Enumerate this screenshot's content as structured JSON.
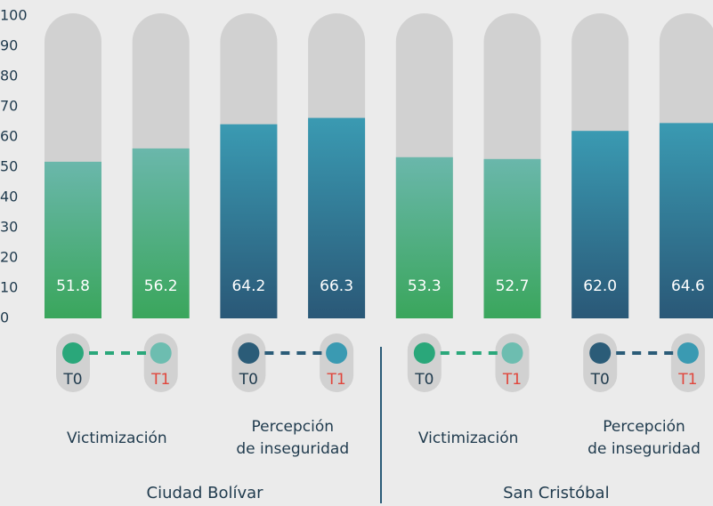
{
  "chart_data": {
    "type": "bar",
    "values": [
      51.8,
      56.2,
      64.2,
      66.3,
      53.3,
      52.7,
      62.0,
      64.6
    ],
    "value_labels": [
      "51.8",
      "56.2",
      "64.2",
      "66.3",
      "53.3",
      "52.7",
      "62.0",
      "64.6"
    ],
    "ylim": [
      0,
      100
    ],
    "yticks": [
      0,
      10,
      20,
      30,
      40,
      50,
      60,
      70,
      80,
      90,
      100
    ],
    "track_color": "#d1d1d1",
    "bar_colors": [
      {
        "top": "#6ab7ab",
        "bottom": "#3aa65c"
      },
      {
        "top": "#6ab7ab",
        "bottom": "#3aa65c"
      },
      {
        "top": "#3a9ab2",
        "bottom": "#2a5877"
      },
      {
        "top": "#3a9ab2",
        "bottom": "#2a5877"
      },
      {
        "top": "#6ab7ab",
        "bottom": "#3aa65c"
      },
      {
        "top": "#6ab7ab",
        "bottom": "#3aa65c"
      },
      {
        "top": "#3a9ab2",
        "bottom": "#2a5877"
      },
      {
        "top": "#3a9ab2",
        "bottom": "#2a5877"
      }
    ],
    "periods": [
      "T0",
      "T1",
      "T0",
      "T1",
      "T0",
      "T1",
      "T0",
      "T1"
    ],
    "period_text_colors": {
      "T0": "#1f3a4d",
      "T1": "#e0463c"
    },
    "dot_colors": [
      "#2aa77a",
      "#6dbdb0",
      "#2b5c78",
      "#3a9ab2",
      "#2aa77a",
      "#6dbdb0",
      "#2b5c78",
      "#3a9ab2"
    ],
    "subgroups": [
      [
        "Victimización"
      ],
      [
        "Percepción",
        "de inseguridad"
      ],
      [
        "Victimización"
      ],
      [
        "Percepción",
        "de inseguridad"
      ]
    ],
    "groups": [
      "Ciudad Bolívar",
      "San Cristóbal"
    ]
  }
}
